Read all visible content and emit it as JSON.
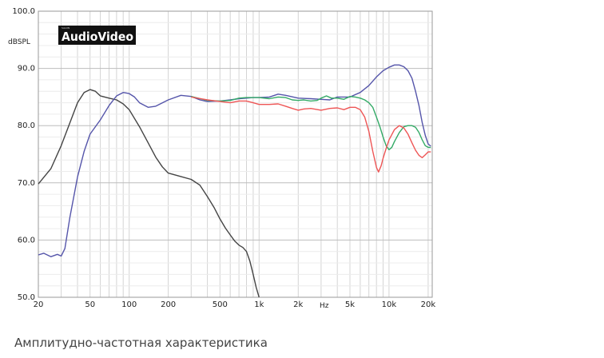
{
  "chart_data": {
    "type": "line",
    "ylabel": "dBSPL",
    "xscale": "log",
    "xlim": [
      20,
      21500
    ],
    "ylim": [
      50,
      100
    ],
    "grid": true,
    "legend": "none",
    "x_ticks": [
      {
        "value": 20,
        "label": "20"
      },
      {
        "value": 50,
        "label": "50"
      },
      {
        "value": 100,
        "label": "100"
      },
      {
        "value": 200,
        "label": "200"
      },
      {
        "value": 500,
        "label": "500"
      },
      {
        "value": 1000,
        "label": "1k"
      },
      {
        "value": 2000,
        "label": "2k"
      },
      {
        "value": 5000,
        "label": "5k"
      },
      {
        "value": 10000,
        "label": "10k"
      },
      {
        "value": 20000,
        "label": "20k"
      }
    ],
    "x_unit_label": "Hz",
    "y_ticks": [
      {
        "value": 50,
        "label": "50.0"
      },
      {
        "value": 60,
        "label": "60.0"
      },
      {
        "value": 70,
        "label": "70.0"
      },
      {
        "value": 80,
        "label": "80.0"
      },
      {
        "value": 90,
        "label": "90.0"
      },
      {
        "value": 100,
        "label": "100.0"
      }
    ],
    "series": [
      {
        "color": "#444444",
        "points": [
          [
            20,
            69.8
          ],
          [
            25,
            72.5
          ],
          [
            30,
            76.5
          ],
          [
            35,
            80.5
          ],
          [
            40,
            84.0
          ],
          [
            45,
            85.8
          ],
          [
            50,
            86.3
          ],
          [
            55,
            86.0
          ],
          [
            60,
            85.2
          ],
          [
            70,
            84.8
          ],
          [
            80,
            84.5
          ],
          [
            90,
            83.8
          ],
          [
            100,
            82.8
          ],
          [
            120,
            79.8
          ],
          [
            140,
            77.0
          ],
          [
            160,
            74.5
          ],
          [
            180,
            72.8
          ],
          [
            200,
            71.7
          ],
          [
            250,
            71.1
          ],
          [
            300,
            70.6
          ],
          [
            350,
            69.6
          ],
          [
            400,
            67.6
          ],
          [
            450,
            65.7
          ],
          [
            500,
            63.7
          ],
          [
            550,
            62.1
          ],
          [
            600,
            60.9
          ],
          [
            650,
            59.8
          ],
          [
            700,
            59.1
          ],
          [
            750,
            58.7
          ],
          [
            800,
            58.0
          ],
          [
            850,
            56.3
          ],
          [
            900,
            54.0
          ],
          [
            950,
            51.7
          ],
          [
            1000,
            50.0
          ]
        ]
      },
      {
        "color": "#5555aa",
        "points": [
          [
            20,
            57.4
          ],
          [
            22,
            57.7
          ],
          [
            25,
            57.1
          ],
          [
            28,
            57.5
          ],
          [
            30,
            57.2
          ],
          [
            32,
            58.5
          ],
          [
            35,
            64.0
          ],
          [
            40,
            71.0
          ],
          [
            45,
            75.5
          ],
          [
            50,
            78.5
          ],
          [
            60,
            81.0
          ],
          [
            70,
            83.5
          ],
          [
            80,
            85.2
          ],
          [
            90,
            85.8
          ],
          [
            100,
            85.6
          ],
          [
            110,
            85.0
          ],
          [
            120,
            84.0
          ],
          [
            140,
            83.2
          ],
          [
            160,
            83.4
          ],
          [
            200,
            84.5
          ],
          [
            250,
            85.3
          ],
          [
            300,
            85.1
          ],
          [
            350,
            84.5
          ],
          [
            400,
            84.2
          ],
          [
            500,
            84.3
          ],
          [
            600,
            84.5
          ],
          [
            700,
            84.7
          ],
          [
            800,
            84.8
          ],
          [
            900,
            84.9
          ],
          [
            1000,
            84.9
          ],
          [
            1200,
            85.0
          ],
          [
            1400,
            85.5
          ],
          [
            1600,
            85.3
          ],
          [
            2000,
            84.8
          ],
          [
            2500,
            84.7
          ],
          [
            3000,
            84.6
          ],
          [
            3500,
            84.5
          ],
          [
            4000,
            85.0
          ],
          [
            4500,
            85.0
          ],
          [
            5000,
            85.0
          ],
          [
            6000,
            85.8
          ],
          [
            7000,
            87.0
          ],
          [
            8000,
            88.5
          ],
          [
            9000,
            89.6
          ],
          [
            10000,
            90.2
          ],
          [
            11000,
            90.6
          ],
          [
            12000,
            90.6
          ],
          [
            13000,
            90.3
          ],
          [
            14000,
            89.6
          ],
          [
            15000,
            88.3
          ],
          [
            16000,
            86.0
          ],
          [
            17000,
            83.5
          ],
          [
            18000,
            80.5
          ],
          [
            19000,
            78.3
          ],
          [
            20000,
            76.8
          ],
          [
            21000,
            76.4
          ]
        ]
      },
      {
        "color": "#33aa66",
        "points": [
          [
            300,
            85.1
          ],
          [
            400,
            84.4
          ],
          [
            500,
            84.3
          ],
          [
            600,
            84.4
          ],
          [
            700,
            84.8
          ],
          [
            800,
            84.9
          ],
          [
            1000,
            84.9
          ],
          [
            1200,
            84.7
          ],
          [
            1400,
            85.0
          ],
          [
            1600,
            84.9
          ],
          [
            1800,
            84.5
          ],
          [
            2000,
            84.4
          ],
          [
            2200,
            84.5
          ],
          [
            2500,
            84.3
          ],
          [
            2800,
            84.4
          ],
          [
            3000,
            84.8
          ],
          [
            3300,
            85.2
          ],
          [
            3600,
            84.8
          ],
          [
            4000,
            84.8
          ],
          [
            4500,
            84.6
          ],
          [
            5000,
            85.1
          ],
          [
            5500,
            85.0
          ],
          [
            6000,
            84.8
          ],
          [
            6500,
            84.5
          ],
          [
            7000,
            84.0
          ],
          [
            7500,
            83.2
          ],
          [
            8000,
            81.5
          ],
          [
            8500,
            79.8
          ],
          [
            9000,
            78.0
          ],
          [
            9500,
            76.5
          ],
          [
            10000,
            75.8
          ],
          [
            10500,
            76.2
          ],
          [
            11000,
            77.2
          ],
          [
            12000,
            78.8
          ],
          [
            13000,
            79.8
          ],
          [
            14000,
            80.0
          ],
          [
            15000,
            80.0
          ],
          [
            16000,
            79.7
          ],
          [
            17000,
            78.8
          ],
          [
            18000,
            77.5
          ],
          [
            19000,
            76.5
          ],
          [
            20000,
            76.2
          ],
          [
            21000,
            76.2
          ]
        ]
      },
      {
        "color": "#ee5555",
        "points": [
          [
            300,
            85.0
          ],
          [
            400,
            84.5
          ],
          [
            500,
            84.2
          ],
          [
            600,
            84.0
          ],
          [
            700,
            84.3
          ],
          [
            800,
            84.3
          ],
          [
            900,
            84.0
          ],
          [
            1000,
            83.7
          ],
          [
            1200,
            83.7
          ],
          [
            1400,
            83.8
          ],
          [
            1600,
            83.4
          ],
          [
            1800,
            83.0
          ],
          [
            2000,
            82.7
          ],
          [
            2200,
            82.9
          ],
          [
            2500,
            83.0
          ],
          [
            3000,
            82.7
          ],
          [
            3500,
            83.0
          ],
          [
            4000,
            83.1
          ],
          [
            4500,
            82.8
          ],
          [
            5000,
            83.2
          ],
          [
            5500,
            83.2
          ],
          [
            6000,
            82.8
          ],
          [
            6500,
            81.5
          ],
          [
            7000,
            79.0
          ],
          [
            7500,
            75.5
          ],
          [
            8000,
            72.7
          ],
          [
            8300,
            71.9
          ],
          [
            8700,
            73.0
          ],
          [
            9000,
            74.3
          ],
          [
            9500,
            76.0
          ],
          [
            10000,
            77.5
          ],
          [
            11000,
            79.3
          ],
          [
            12000,
            80.0
          ],
          [
            13000,
            79.6
          ],
          [
            14000,
            78.5
          ],
          [
            15000,
            77.0
          ],
          [
            16000,
            75.7
          ],
          [
            17000,
            74.8
          ],
          [
            18000,
            74.4
          ],
          [
            19000,
            74.9
          ],
          [
            20000,
            75.4
          ],
          [
            21000,
            75.4
          ]
        ]
      }
    ]
  },
  "logo": {
    "text": "AudioVideo",
    "brand_small": "SALON"
  },
  "caption": "Амплитудно-частотная характеристика"
}
